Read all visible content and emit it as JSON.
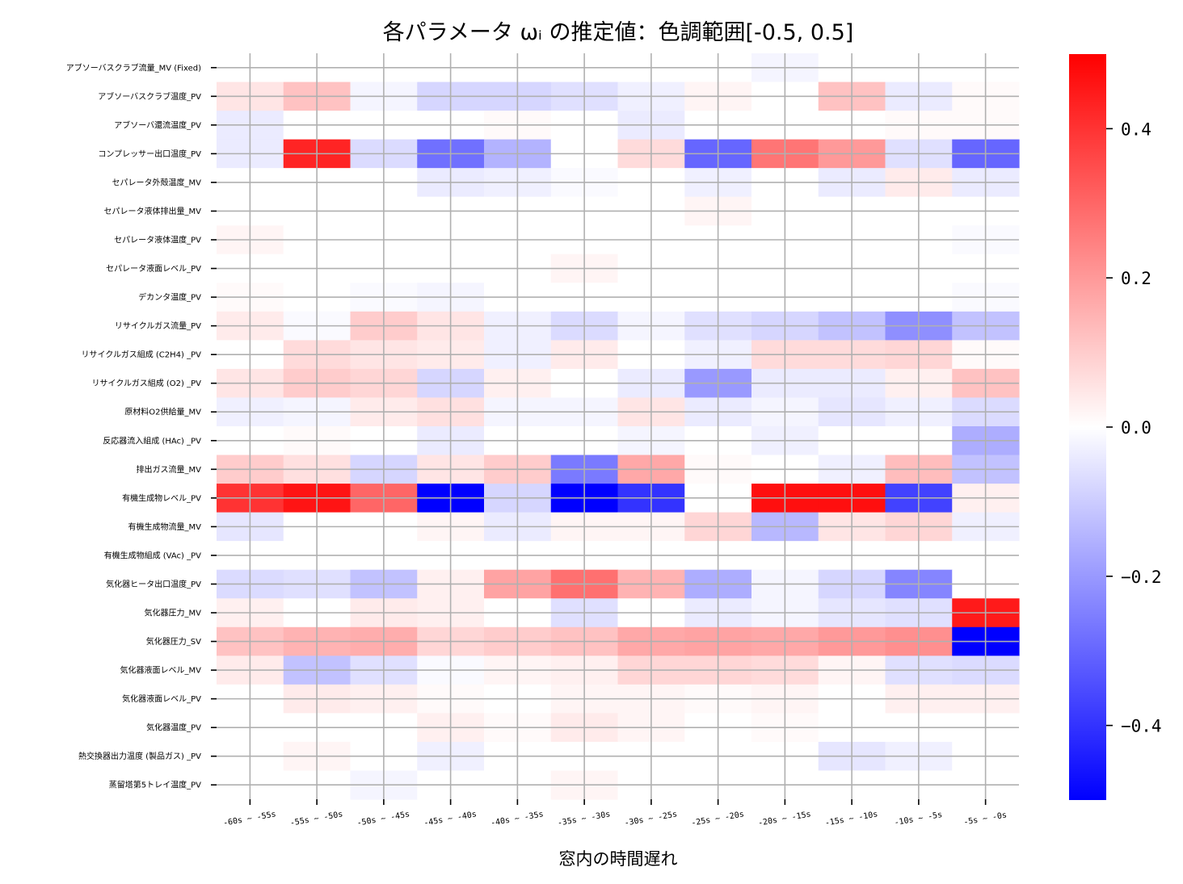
{
  "chart_data": {
    "type": "heatmap",
    "title": "各パラメータ ωᵢ の推定値：色調範囲[-0.5, 0.5]",
    "xlabel": "窓内の時間遅れ",
    "ylabel": "",
    "colormap": "bwr",
    "color_low": "#0000ff",
    "color_mid": "#ffffff",
    "color_high": "#ff0000",
    "vmin": -0.5,
    "vmax": 0.5,
    "grid": true,
    "colorbar_ticks": [
      "0.4",
      "0.2",
      "0.0",
      "−0.2",
      "−0.4"
    ],
    "colorbar_tick_values": [
      0.4,
      0.2,
      0.0,
      -0.2,
      -0.4
    ],
    "columns": [
      "-60s ~ -55s",
      "-55s ~ -50s",
      "-50s ~ -45s",
      "-45s ~ -40s",
      "-40s ~ -35s",
      "-35s ~ -30s",
      "-30s ~ -25s",
      "-25s ~ -20s",
      "-20s ~ -15s",
      "-15s ~ -10s",
      "-10s ~ -5s",
      "-5s ~ -0s"
    ],
    "rows": [
      "アブソーバスクラブ流量_MV (Fixed)",
      "アブソーバスクラブ温度_PV",
      "アブソーバ還流温度_PV",
      "コンプレッサー出口温度_PV",
      "セパレータ外殻温度_MV",
      "セパレータ液体排出量_MV",
      "セパレータ液体温度_PV",
      "セパレータ液面レベル_PV",
      "デカンタ温度_PV",
      "リサイクルガス流量_PV",
      "リサイクルガス組成 (C2H4) _PV",
      "リサイクルガス組成 (O2) _PV",
      "原材料O2供給量_MV",
      "反応器流入組成 (HAc) _PV",
      "排出ガス流量_MV",
      "有機生成物レベル_PV",
      "有機生成物流量_MV",
      "有機生成物組成 (VAc) _PV",
      "気化器ヒータ出口温度_PV",
      "気化器圧力_MV",
      "気化器圧力_SV",
      "気化器液面レベル_MV",
      "気化器液面レベル_PV",
      "気化器温度_PV",
      "熱交換器出力温度 (製品ガス) _PV",
      "蒸留塔第5トレイ温度_PV"
    ],
    "values": [
      [
        0.0,
        0.0,
        0.0,
        0.0,
        0.0,
        0.0,
        0.0,
        0.0,
        -0.02,
        0.0,
        0.0,
        0.0
      ],
      [
        0.05,
        0.12,
        -0.02,
        -0.08,
        -0.08,
        -0.06,
        -0.03,
        0.02,
        0.0,
        0.12,
        -0.04,
        0.01
      ],
      [
        -0.04,
        0.0,
        0.0,
        0.0,
        0.01,
        0.0,
        -0.04,
        0.0,
        0.0,
        0.0,
        0.01,
        0.01
      ],
      [
        -0.04,
        0.43,
        -0.07,
        -0.28,
        -0.15,
        0.0,
        0.07,
        -0.3,
        0.27,
        0.2,
        -0.06,
        -0.3
      ],
      [
        0.0,
        0.0,
        0.0,
        -0.04,
        -0.03,
        -0.01,
        0.0,
        -0.03,
        0.0,
        -0.04,
        0.04,
        -0.04
      ],
      [
        0.0,
        0.0,
        0.0,
        0.0,
        0.0,
        0.0,
        0.0,
        0.02,
        0.0,
        0.0,
        0.0,
        0.0
      ],
      [
        0.02,
        0.0,
        0.0,
        0.0,
        0.0,
        0.0,
        0.0,
        0.0,
        0.0,
        0.0,
        0.0,
        -0.01
      ],
      [
        0.0,
        0.0,
        0.0,
        0.0,
        0.0,
        0.02,
        0.0,
        0.0,
        0.0,
        0.0,
        0.0,
        0.0
      ],
      [
        0.01,
        0.0,
        -0.01,
        -0.02,
        0.0,
        0.0,
        0.0,
        0.0,
        0.0,
        0.0,
        0.0,
        -0.01
      ],
      [
        0.04,
        -0.01,
        0.1,
        0.05,
        -0.03,
        -0.07,
        -0.02,
        -0.06,
        -0.08,
        -0.12,
        -0.22,
        -0.12
      ],
      [
        0.0,
        0.07,
        0.05,
        0.04,
        -0.03,
        0.04,
        0.0,
        -0.03,
        0.07,
        0.07,
        0.08,
        0.01
      ],
      [
        0.05,
        0.1,
        0.08,
        -0.08,
        0.03,
        0.0,
        -0.04,
        -0.2,
        -0.04,
        -0.04,
        0.03,
        0.12
      ],
      [
        -0.03,
        -0.02,
        0.04,
        0.06,
        -0.02,
        -0.02,
        0.05,
        -0.04,
        -0.02,
        -0.05,
        -0.03,
        -0.07
      ],
      [
        0.0,
        0.01,
        0.0,
        -0.04,
        0.0,
        0.0,
        -0.02,
        0.0,
        -0.03,
        0.0,
        0.0,
        -0.16
      ],
      [
        0.1,
        0.06,
        -0.08,
        0.05,
        0.1,
        -0.26,
        0.17,
        0.01,
        0.0,
        -0.03,
        0.13,
        -0.12
      ],
      [
        0.4,
        0.46,
        0.3,
        -0.5,
        -0.08,
        -0.5,
        -0.4,
        0.0,
        0.47,
        0.47,
        -0.37,
        0.03
      ],
      [
        -0.05,
        0.0,
        0.0,
        0.02,
        -0.04,
        0.02,
        0.02,
        0.08,
        -0.14,
        0.05,
        0.08,
        -0.03
      ],
      [
        0.0,
        0.0,
        0.0,
        0.0,
        0.0,
        0.0,
        0.0,
        0.0,
        0.0,
        0.0,
        0.0,
        0.0
      ],
      [
        -0.07,
        -0.06,
        -0.12,
        0.03,
        0.18,
        0.28,
        0.15,
        -0.16,
        -0.02,
        -0.08,
        -0.24,
        0.0
      ],
      [
        0.03,
        0.0,
        0.04,
        0.03,
        0.0,
        -0.06,
        0.0,
        -0.04,
        -0.02,
        -0.05,
        -0.06,
        0.45
      ],
      [
        0.12,
        0.15,
        0.16,
        0.08,
        0.1,
        0.12,
        0.17,
        0.18,
        0.17,
        0.2,
        0.22,
        -0.5
      ],
      [
        0.04,
        -0.12,
        -0.06,
        -0.01,
        0.02,
        0.03,
        0.08,
        0.08,
        0.07,
        0.02,
        -0.06,
        -0.07
      ],
      [
        0.0,
        0.04,
        0.03,
        0.01,
        0.0,
        0.02,
        0.02,
        0.01,
        0.02,
        0.0,
        0.03,
        0.03
      ],
      [
        0.0,
        0.0,
        0.0,
        0.03,
        0.01,
        0.04,
        0.02,
        0.0,
        0.01,
        0.0,
        0.0,
        0.0
      ],
      [
        0.0,
        0.02,
        0.0,
        -0.03,
        0.0,
        0.0,
        0.0,
        0.0,
        0.0,
        -0.05,
        -0.03,
        0.0
      ],
      [
        0.0,
        0.0,
        -0.02,
        0.0,
        0.0,
        0.02,
        0.0,
        0.0,
        0.0,
        0.0,
        0.0,
        0.0
      ]
    ]
  }
}
